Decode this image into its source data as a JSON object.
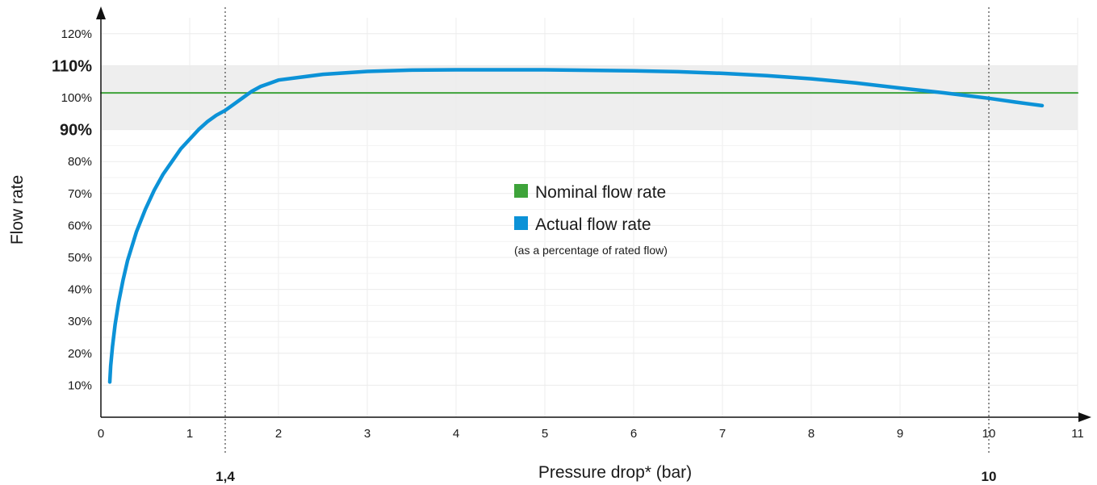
{
  "chart_data": {
    "type": "line",
    "title": "",
    "xlabel": "Pressure drop* (bar)",
    "ylabel": "Flow rate",
    "xlim": [
      0,
      11
    ],
    "ylim": [
      0,
      125
    ],
    "x_ticks": [
      {
        "value": 0,
        "label": "0"
      },
      {
        "value": 1,
        "label": "1"
      },
      {
        "value": 2,
        "label": "2"
      },
      {
        "value": 3,
        "label": "3"
      },
      {
        "value": 4,
        "label": "4"
      },
      {
        "value": 5,
        "label": "5"
      },
      {
        "value": 6,
        "label": "6"
      },
      {
        "value": 7,
        "label": "7"
      },
      {
        "value": 8,
        "label": "8"
      },
      {
        "value": 9,
        "label": "9"
      },
      {
        "value": 10,
        "label": "10"
      },
      {
        "value": 11,
        "label": "11"
      }
    ],
    "y_ticks": [
      {
        "value": 10,
        "label": "10%",
        "bold": false
      },
      {
        "value": 20,
        "label": "20%",
        "bold": false
      },
      {
        "value": 30,
        "label": "30%",
        "bold": false
      },
      {
        "value": 40,
        "label": "40%",
        "bold": false
      },
      {
        "value": 50,
        "label": "50%",
        "bold": false
      },
      {
        "value": 60,
        "label": "60%",
        "bold": false
      },
      {
        "value": 70,
        "label": "70%",
        "bold": false
      },
      {
        "value": 80,
        "label": "80%",
        "bold": false
      },
      {
        "value": 90,
        "label": "90%",
        "bold": true
      },
      {
        "value": 100,
        "label": "100%",
        "bold": false
      },
      {
        "value": 110,
        "label": "110%",
        "bold": true
      },
      {
        "value": 120,
        "label": "120%",
        "bold": false
      }
    ],
    "grid": true,
    "tolerance_band": {
      "y_min": 90,
      "y_max": 110,
      "color": "#eeeeee"
    },
    "vertical_markers": [
      {
        "x": 1.4,
        "label": "1,4"
      },
      {
        "x": 10,
        "label": "10"
      }
    ],
    "series": [
      {
        "name": "Nominal flow rate",
        "color": "#3ea33a",
        "x": [
          0,
          11
        ],
        "y": [
          101.5,
          101.5
        ]
      },
      {
        "name": "Actual flow rate",
        "color": "#0c92d7",
        "x": [
          0.1,
          0.11,
          0.13,
          0.16,
          0.2,
          0.25,
          0.3,
          0.4,
          0.5,
          0.6,
          0.7,
          0.8,
          0.9,
          1.0,
          1.1,
          1.2,
          1.3,
          1.4,
          1.5,
          1.6,
          1.7,
          1.8,
          1.9,
          2.0,
          2.5,
          3.0,
          3.5,
          4.0,
          5.0,
          6.0,
          6.5,
          7.0,
          7.5,
          8.0,
          8.5,
          9.0,
          9.5,
          10.0,
          10.3,
          10.6
        ],
        "y": [
          11,
          16,
          22,
          29,
          36,
          43,
          49,
          58,
          65,
          71,
          76,
          80,
          84,
          87,
          90,
          92.5,
          94.5,
          96,
          98,
          100,
          102,
          103.5,
          104.5,
          105.5,
          107.3,
          108.2,
          108.6,
          108.7,
          108.7,
          108.4,
          108.1,
          107.6,
          106.9,
          105.9,
          104.6,
          103,
          101.5,
          99.8,
          98.6,
          97.5
        ]
      }
    ],
    "legend": {
      "placement": "center",
      "note": "(as a percentage of rated flow)"
    }
  }
}
